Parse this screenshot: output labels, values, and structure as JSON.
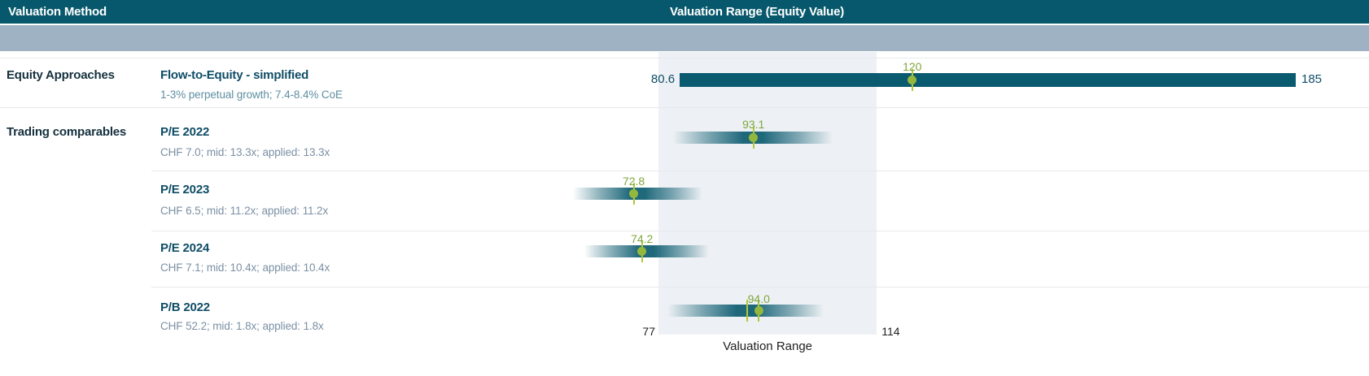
{
  "header": {
    "method_col": "Valuation Method",
    "range_col": "Valuation Range (Equity Value)"
  },
  "colors": {
    "header_bg": "#07586C",
    "subheader_bg": "#9FB2C3",
    "band_bg": "#EDF1F5",
    "bar_teal": "#0A5A70",
    "marker_green": "#93B83D",
    "marker_label_green": "#7FA63A",
    "mid_line_green": "#AFC837",
    "method_text": "#0F4D66",
    "group_text": "#15303E",
    "detail_text": "#7B90A4",
    "detail_text_row1": "#5E8FA1"
  },
  "chart_data": {
    "type": "bar",
    "variant": "horizontal-range-football-field",
    "title": "Valuation Range (Equity Value)",
    "xlabel": "Valuation Range",
    "legend_position": "none",
    "grid": false,
    "valuation_band": {
      "min": 77,
      "max": 114,
      "min_label": "77",
      "max_label": "114",
      "caption": "Valuation Range"
    },
    "series": [
      {
        "group": "Equity Approaches",
        "name": "Flow-to-Equity - simplified",
        "detail": "1-3% perpetual growth; 7.4-8.4% CoE",
        "style": "solid",
        "range": [
          80.6,
          185
        ],
        "range_labels": [
          "80.6",
          "185"
        ],
        "marker": 120,
        "marker_label": "120"
      },
      {
        "group": "Trading comparables",
        "name": "P/E 2022",
        "detail": "CHF 7.0; mid: 13.3x; applied: 13.3x",
        "style": "gradient",
        "range": [
          79.5,
          106.5
        ],
        "marker": 93.1,
        "marker_label": "93.1"
      },
      {
        "name": "P/E 2023",
        "detail": "CHF 6.5; mid: 11.2x; applied: 11.2x",
        "style": "gradient",
        "range": [
          62.5,
          84.5
        ],
        "marker": 72.8,
        "marker_label": "72.8"
      },
      {
        "name": "P/E 2024",
        "detail": "CHF 7.1; mid: 10.4x; applied: 10.4x",
        "style": "gradient",
        "range": [
          64.5,
          85.5
        ],
        "marker": 74.2,
        "marker_label": "74.2"
      },
      {
        "name": "P/B 2022",
        "detail": "CHF 52.2; mid: 1.8x; applied: 1.8x",
        "style": "gradient",
        "range": [
          78.5,
          105
        ],
        "marker": 94.0,
        "marker_label": "94.0",
        "mid_line": 92
      }
    ]
  }
}
